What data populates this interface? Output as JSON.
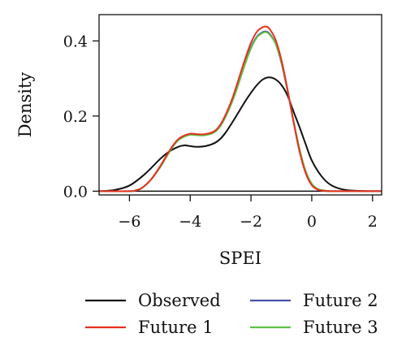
{
  "chart_data": {
    "type": "line",
    "xlabel": "SPEI",
    "ylabel": "Density",
    "xlim": [
      -7,
      2.3
    ],
    "ylim": [
      -0.01,
      0.47
    ],
    "x_ticks": [
      -6,
      -4,
      -2,
      0,
      2
    ],
    "x_tick_labels": [
      "−6",
      "−4",
      "−2",
      "0",
      "2"
    ],
    "y_ticks": [
      0.0,
      0.2,
      0.4
    ],
    "y_tick_labels": [
      "0.0",
      "0.2",
      "0.4"
    ],
    "grid": false,
    "legend_position": "bottom",
    "series": [
      {
        "name": "Observed",
        "color": "#111111",
        "x": [
          -7.0,
          -6.5,
          -6.0,
          -5.5,
          -5.0,
          -4.7,
          -4.4,
          -4.2,
          -4.0,
          -3.8,
          -3.5,
          -3.2,
          -3.0,
          -2.8,
          -2.5,
          -2.2,
          -2.0,
          -1.8,
          -1.6,
          -1.4,
          -1.2,
          -1.0,
          -0.8,
          -0.6,
          -0.4,
          -0.2,
          0.0,
          0.3,
          0.6,
          1.0,
          1.5,
          2.0,
          2.3
        ],
        "y": [
          0.0,
          0.003,
          0.015,
          0.045,
          0.085,
          0.105,
          0.118,
          0.122,
          0.12,
          0.118,
          0.12,
          0.128,
          0.14,
          0.16,
          0.198,
          0.238,
          0.262,
          0.283,
          0.298,
          0.303,
          0.298,
          0.283,
          0.255,
          0.212,
          0.17,
          0.125,
          0.082,
          0.042,
          0.018,
          0.005,
          0.001,
          0.0,
          0.0
        ]
      },
      {
        "name": "Future 1",
        "color": "#e8301e",
        "x": [
          -7.0,
          -6.0,
          -5.8,
          -5.6,
          -5.3,
          -5.0,
          -4.8,
          -4.6,
          -4.4,
          -4.2,
          -4.0,
          -3.8,
          -3.5,
          -3.2,
          -3.0,
          -2.8,
          -2.6,
          -2.4,
          -2.2,
          -2.0,
          -1.8,
          -1.6,
          -1.5,
          -1.4,
          -1.2,
          -1.0,
          -0.8,
          -0.6,
          -0.4,
          -0.2,
          0.0,
          0.2,
          0.4,
          0.6,
          1.0,
          2.3
        ],
        "y": [
          0.0,
          0.0,
          0.002,
          0.008,
          0.03,
          0.065,
          0.092,
          0.118,
          0.138,
          0.148,
          0.153,
          0.152,
          0.152,
          0.16,
          0.178,
          0.21,
          0.25,
          0.3,
          0.35,
          0.395,
          0.425,
          0.437,
          0.438,
          0.433,
          0.405,
          0.35,
          0.272,
          0.185,
          0.105,
          0.048,
          0.016,
          0.004,
          0.001,
          0.0,
          0.0,
          0.0
        ]
      },
      {
        "name": "Future 2",
        "color": "#4a4fa8",
        "x": [
          -7.0,
          -6.0,
          -5.8,
          -5.6,
          -5.3,
          -5.0,
          -4.8,
          -4.6,
          -4.4,
          -4.2,
          -4.0,
          -3.8,
          -3.5,
          -3.2,
          -3.0,
          -2.8,
          -2.6,
          -2.4,
          -2.2,
          -2.0,
          -1.8,
          -1.6,
          -1.5,
          -1.4,
          -1.2,
          -1.0,
          -0.8,
          -0.6,
          -0.4,
          -0.2,
          0.0,
          0.2,
          0.4,
          0.6,
          1.0,
          2.3
        ],
        "y": [
          0.0,
          0.0,
          0.002,
          0.008,
          0.03,
          0.063,
          0.09,
          0.116,
          0.136,
          0.146,
          0.151,
          0.15,
          0.15,
          0.158,
          0.175,
          0.205,
          0.243,
          0.29,
          0.34,
          0.383,
          0.412,
          0.424,
          0.425,
          0.42,
          0.395,
          0.342,
          0.268,
          0.185,
          0.108,
          0.05,
          0.018,
          0.005,
          0.001,
          0.0,
          0.0,
          0.0
        ]
      },
      {
        "name": "Future 3",
        "color": "#5cc24a",
        "x": [
          -7.0,
          -6.0,
          -5.8,
          -5.6,
          -5.3,
          -5.0,
          -4.8,
          -4.6,
          -4.4,
          -4.2,
          -4.0,
          -3.8,
          -3.5,
          -3.2,
          -3.0,
          -2.8,
          -2.6,
          -2.4,
          -2.2,
          -2.0,
          -1.8,
          -1.6,
          -1.5,
          -1.4,
          -1.2,
          -1.0,
          -0.8,
          -0.6,
          -0.4,
          -0.2,
          0.0,
          0.2,
          0.4,
          0.6,
          1.0,
          2.3
        ],
        "y": [
          0.0,
          0.0,
          0.002,
          0.008,
          0.03,
          0.062,
          0.089,
          0.115,
          0.135,
          0.145,
          0.15,
          0.149,
          0.149,
          0.157,
          0.174,
          0.204,
          0.242,
          0.288,
          0.337,
          0.38,
          0.41,
          0.422,
          0.423,
          0.418,
          0.394,
          0.343,
          0.27,
          0.188,
          0.112,
          0.054,
          0.02,
          0.006,
          0.002,
          0.0,
          0.0,
          0.0
        ]
      }
    ]
  }
}
